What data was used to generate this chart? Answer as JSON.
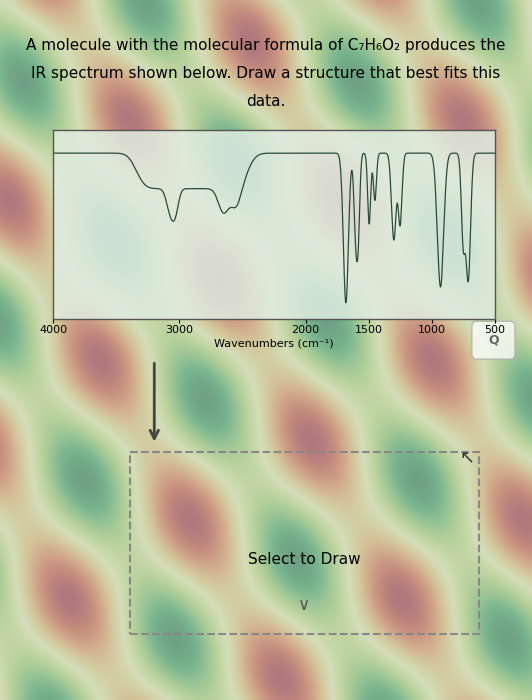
{
  "title_line1": "A molecule with the molecular formula of C₇H₆O₂ produces the",
  "title_line2": "IR spectrum shown below. Draw a structure that best fits this",
  "title_line3": "data.",
  "xlabel": "Wavenumbers (cm⁻¹)",
  "x_ticks": [
    4000,
    3000,
    2000,
    1500,
    1000,
    500
  ],
  "spectrum_color": "#2a4a3a",
  "select_draw_text": "Select to Draw"
}
